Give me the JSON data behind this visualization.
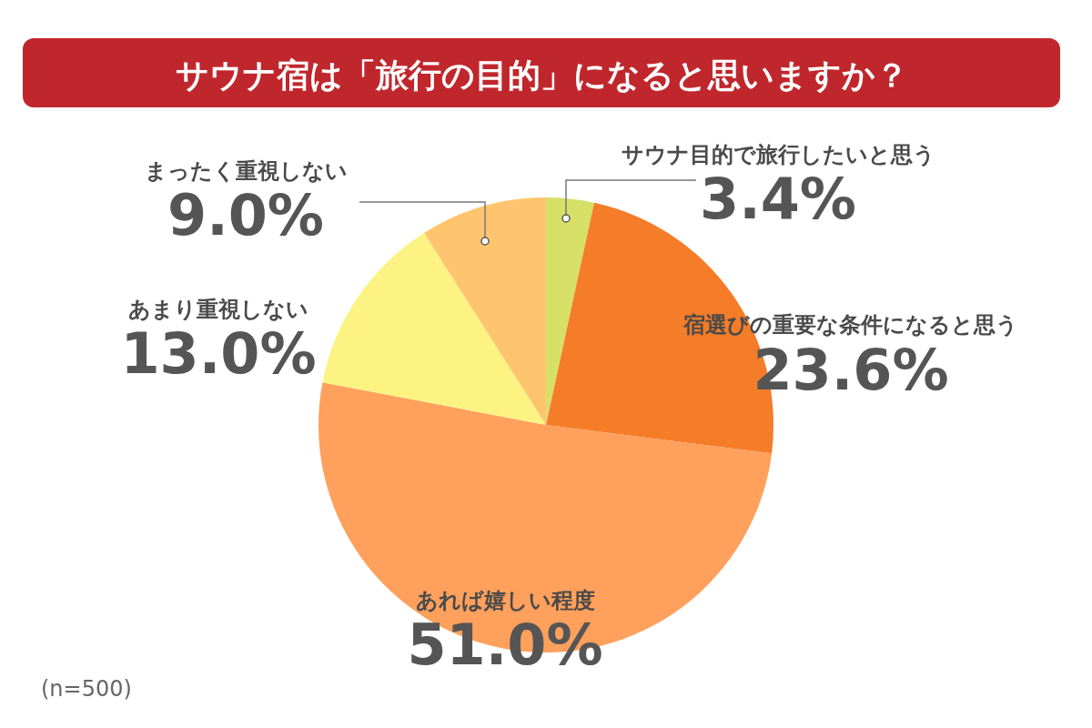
{
  "chart_data": {
    "type": "pie",
    "title": "サウナ宿は「旅行の目的」になると思いますか？",
    "categories": [
      "サウナ目的で旅行したいと思う",
      "宿選びの重要な条件になると思う",
      "あれば嬉しい程度",
      "あまり重視しない",
      "まったく重視しない"
    ],
    "values": [
      3.4,
      23.6,
      51.0,
      13.0,
      9.0
    ],
    "value_labels": [
      "3.4%",
      "23.6%",
      "51.0%",
      "13.0%",
      "9.0%"
    ],
    "colors": [
      "#d6e067",
      "#f57c28",
      "#ffa05c",
      "#fdf383",
      "#ffc56e"
    ],
    "annotations": [
      "(n=500)"
    ]
  }
}
